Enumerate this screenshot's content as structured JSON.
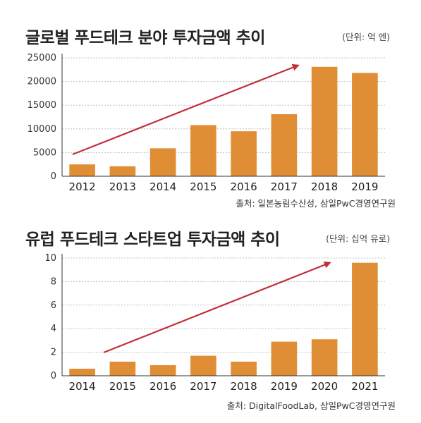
{
  "chart_data": [
    {
      "type": "bar",
      "title": "글로벌 푸드테크 분야 투자금액 추이",
      "unit": "(단위: 억 엔)",
      "source": "출처: 일본농림수산성, 삼일PwC경영연구원",
      "categories": [
        "2012",
        "2013",
        "2014",
        "2015",
        "2016",
        "2017",
        "2018",
        "2019"
      ],
      "values": [
        2500,
        2100,
        5900,
        10800,
        9500,
        13100,
        23100,
        21800
      ],
      "ylim": [
        0,
        25000
      ],
      "yticks": [
        "0",
        "5000",
        "10000",
        "15000",
        "20000",
        "25000"
      ],
      "grid": true,
      "bar_color": "#e08e36",
      "arrow_color": "#c0303a"
    },
    {
      "type": "bar",
      "title": "유럽 푸드테크 스타트업 투자금액 추이",
      "unit": "(단위: 십억 유로)",
      "source": "출처: DigitalFoodLab, 삼일PwC경영연구원",
      "categories": [
        "2014",
        "2015",
        "2016",
        "2017",
        "2018",
        "2019",
        "2020",
        "2021"
      ],
      "values": [
        0.6,
        1.2,
        0.9,
        1.7,
        1.2,
        2.9,
        3.1,
        9.6
      ],
      "ylim": [
        0,
        10
      ],
      "yticks": [
        "0",
        "2",
        "4",
        "6",
        "8",
        "10"
      ],
      "grid": true,
      "bar_color": "#e08e36",
      "arrow_color": "#c0303a"
    }
  ]
}
